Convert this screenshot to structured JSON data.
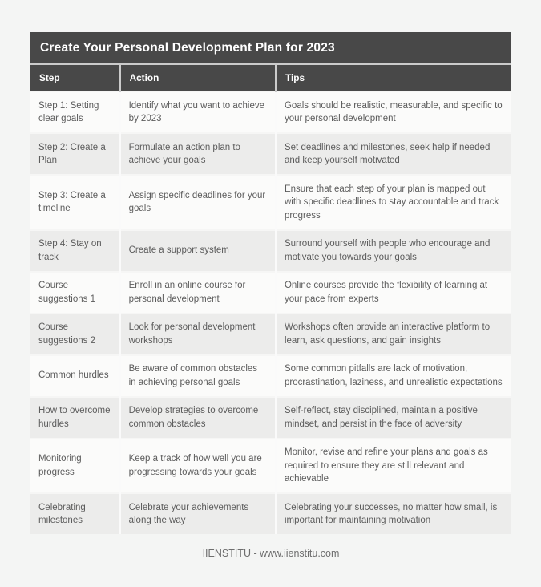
{
  "page": {
    "background_color": "#f4f5f4",
    "footer_text": "IIENSTITU - www.iienstitu.com"
  },
  "table": {
    "title": "Create Your Personal Development Plan for 2023",
    "header_bg_color": "#484848",
    "columns": [
      "Step",
      "Action",
      "Tips"
    ],
    "rows": [
      {
        "step": "Step 1: Setting clear goals",
        "action": "Identify what you want to achieve by 2023",
        "tips": "Goals should be realistic, measurable, and specific to your personal development"
      },
      {
        "step": "Step 2: Create a Plan",
        "action": "Formulate an action plan to achieve your goals",
        "tips": "Set deadlines and milestones, seek help if needed and keep yourself motivated"
      },
      {
        "step": "Step 3: Create a timeline",
        "action": "Assign specific deadlines for your goals",
        "tips": "Ensure that each step of your plan is mapped out with specific deadlines to stay accountable and track progress"
      },
      {
        "step": "Step 4: Stay on track",
        "action": "Create a support system",
        "tips": "Surround yourself with people who encourage and motivate you towards your goals"
      },
      {
        "step": "Course suggestions 1",
        "action": "Enroll in an online course for personal development",
        "tips": "Online courses provide the flexibility of learning at your pace from experts"
      },
      {
        "step": "Course suggestions 2",
        "action": "Look for personal development workshops",
        "tips": "Workshops often provide an interactive platform to learn, ask questions, and gain insights"
      },
      {
        "step": "Common hurdles",
        "action": "Be aware of common obstacles in achieving personal goals",
        "tips": "Some common pitfalls are lack of motivation, procrastination, laziness, and unrealistic expectations"
      },
      {
        "step": "How to overcome hurdles",
        "action": "Develop strategies to overcome common obstacles",
        "tips": "Self-reflect, stay disciplined, maintain a positive mindset, and persist in the face of adversity"
      },
      {
        "step": "Monitoring progress",
        "action": "Keep a track of how well you are progressing towards your goals",
        "tips": "Monitor, revise and refine your plans and goals as required to ensure they are still relevant and achievable"
      },
      {
        "step": "Celebrating milestones",
        "action": "Celebrate your achievements along the way",
        "tips": "Celebrating your successes, no matter how small, is important for maintaining motivation"
      }
    ]
  }
}
